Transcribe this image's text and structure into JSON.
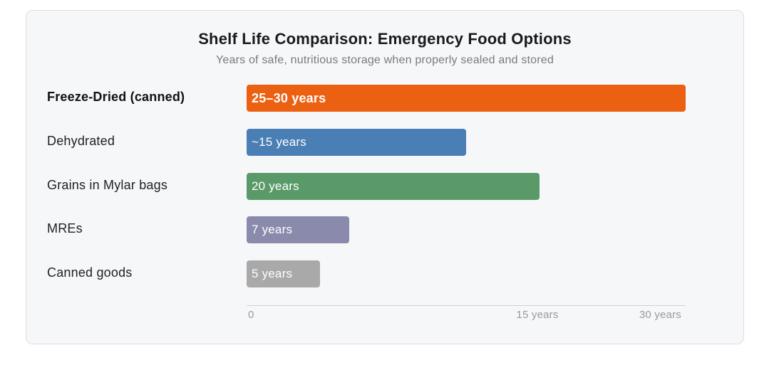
{
  "chart_data": {
    "type": "bar",
    "orientation": "horizontal",
    "title": "Shelf Life Comparison: Emergency Food Options",
    "subtitle": "Years of safe, nutritious storage when properly sealed and stored",
    "categories": [
      "Freeze-Dried (canned)",
      "Dehydrated",
      "Grains in Mylar bags",
      "MREs",
      "Canned goods"
    ],
    "values": [
      30,
      15,
      20,
      7,
      5
    ],
    "data_labels": [
      "25–30 years",
      "~15 years",
      "20 years",
      "7 years",
      "5 years"
    ],
    "colors": [
      "#ec6012",
      "#4a7fb5",
      "#5a9a68",
      "#8a8aad",
      "#a9a9a9"
    ],
    "highlight_index": 0,
    "xlim": [
      0,
      30
    ],
    "ticks": [
      {
        "value": 0,
        "label": "0"
      },
      {
        "value": 15,
        "label": "15 years"
      },
      {
        "value": 30,
        "label": "30 years"
      }
    ],
    "grid": false,
    "legend": "none"
  }
}
